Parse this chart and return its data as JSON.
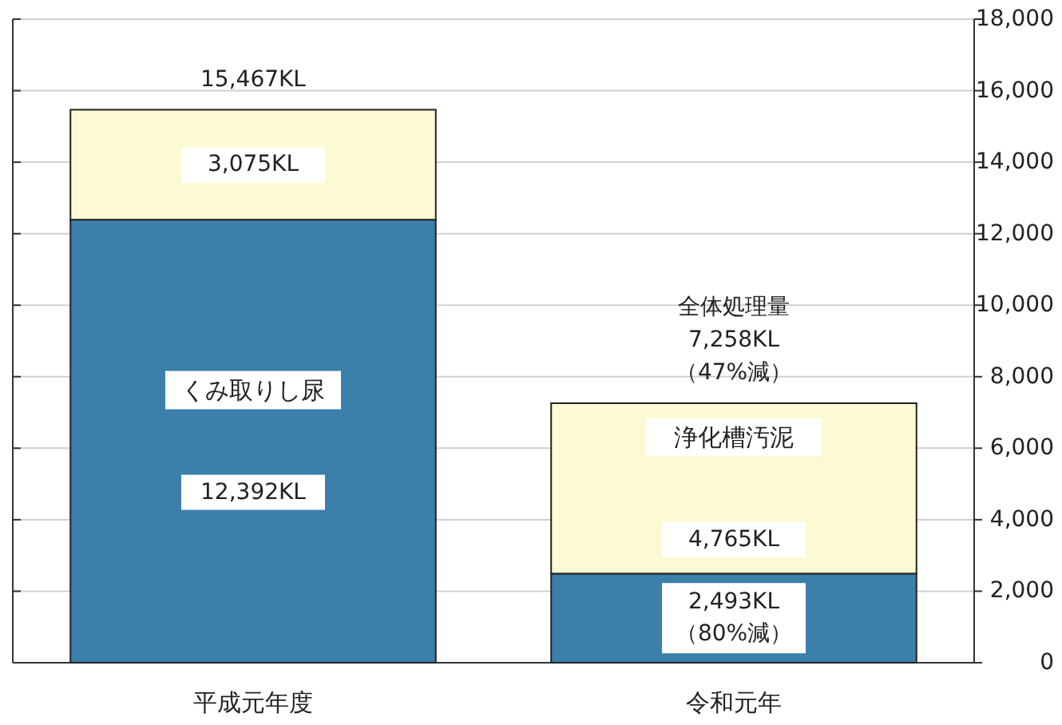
{
  "chart_data": {
    "type": "bar",
    "stacked": true,
    "categories": [
      "平成元年度",
      "令和元年"
    ],
    "series": [
      {
        "name": "くみ取りし尿",
        "color": "#3b7fab",
        "values": [
          12392,
          2493
        ],
        "value_labels": [
          "12,392KL",
          "2,493KL\n（80%減）"
        ]
      },
      {
        "name": "浄化槽汚泥",
        "color": "#fcfad2",
        "values": [
          3075,
          4765
        ],
        "value_labels": [
          "3,075KL",
          "4,765KL"
        ]
      }
    ],
    "totals": [
      "15,467KL",
      "全体処理量\n7,258KL\n（47%減）"
    ],
    "ylim": [
      0,
      18000
    ],
    "yticks": [
      {
        "value": 0,
        "label": "0"
      },
      {
        "value": 2000,
        "label": "2,000"
      },
      {
        "value": 4000,
        "label": "4,000"
      },
      {
        "value": 6000,
        "label": "6,000"
      },
      {
        "value": 8000,
        "label": "8,000"
      },
      {
        "value": 10000,
        "label": "10,000"
      },
      {
        "value": 12000,
        "label": "12,000"
      },
      {
        "value": 14000,
        "label": "14,000"
      },
      {
        "value": 16000,
        "label": "16,000"
      },
      {
        "value": 18000,
        "label": "18,000"
      }
    ],
    "grid": "y",
    "legend": false
  }
}
